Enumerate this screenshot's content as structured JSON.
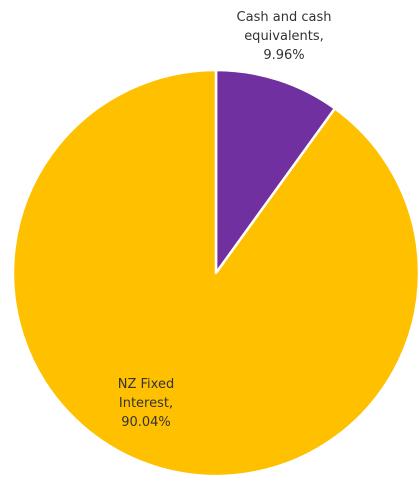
{
  "chart_data": {
    "type": "pie",
    "title": "",
    "start_angle_deg": 0,
    "direction": "clockwise",
    "slices": [
      {
        "label_lines": [
          "Cash and cash",
          "equivalents,",
          "9.96%"
        ],
        "value": 9.96,
        "color": "#7030A0"
      },
      {
        "label_lines": [
          "NZ Fixed",
          "Interest,",
          "90.04%"
        ],
        "value": 90.04,
        "color": "#FFC000"
      }
    ],
    "slice_border_color": "#ffffff",
    "legend": "none"
  }
}
